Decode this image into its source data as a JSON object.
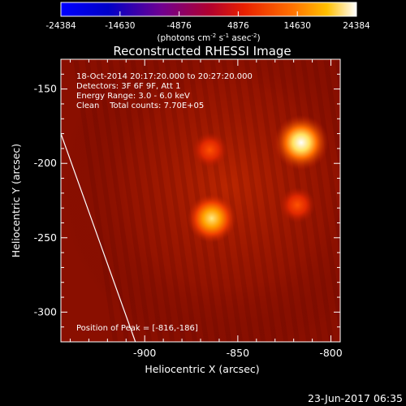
{
  "chart_data": {
    "type": "heatmap",
    "title": "Reconstructed RHESSI Image",
    "xlabel": "Heliocentric X (arcsec)",
    "ylabel": "Heliocentric Y (arcsec)",
    "xlim": [
      -945,
      -795
    ],
    "ylim": [
      -320,
      -130
    ],
    "x_ticks": [
      -900,
      -850,
      -800
    ],
    "y_ticks": [
      -300,
      -250,
      -200,
      -150
    ],
    "colorbar": {
      "ticks": [
        -24384,
        -14630,
        -4876,
        4876,
        14630,
        24384
      ],
      "min": -24384,
      "max": 24384,
      "unit_prefix": "(photons cm",
      "unit_sup1": "-2",
      "unit_mid": " s",
      "unit_sup2": "-1",
      "unit_mid2": " asec",
      "unit_sup3": "-2",
      "unit_suffix": ")"
    },
    "info_lines": [
      "18-Oct-2014 20:17:20.000 to 20:27:20.000",
      "Detectors: 3F 6F 9F, Att 1",
      "Energy Range: 3.0 - 6.0 keV",
      "Clean    Total counts: 7.70E+05"
    ],
    "peak_label": "Position of Peak = [-816,-186]",
    "sources": [
      {
        "x": -816,
        "y": -186,
        "intensity": 1.0
      },
      {
        "x": -864,
        "y": -237,
        "intensity": 0.82
      },
      {
        "x": -865,
        "y": -191,
        "intensity": 0.35
      },
      {
        "x": -818,
        "y": -228,
        "intensity": 0.35
      }
    ],
    "limb_line": [
      [
        -945,
        -180
      ],
      [
        -905,
        -320
      ]
    ]
  },
  "footer_date": "23-Jun-2017 06:35"
}
